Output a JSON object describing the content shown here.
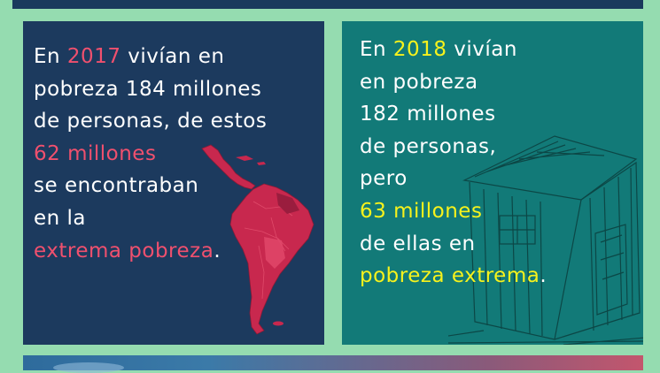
{
  "left_panel": {
    "line1": {
      "pre": "En ",
      "year": "2017",
      "post": " vivían en"
    },
    "line2": "pobreza 184 millones",
    "line3": "de personas, de estos",
    "line4": "62 millones",
    "line5": "se encontraban",
    "line6": "en la",
    "line7": {
      "highlight": "extrema pobreza",
      "post": "."
    }
  },
  "right_panel": {
    "line1": {
      "pre": "En ",
      "year": "2018",
      "post": " vivían"
    },
    "line2": "en pobreza",
    "line3": "182 millones",
    "line4": "de personas,",
    "line5": "pero",
    "line6": "63 millones",
    "line7": "de ellas en",
    "line8": {
      "highlight": "pobreza extrema",
      "post": "."
    }
  },
  "colors": {
    "background": "#95dcb0",
    "left_panel_bg": "#1c3a5e",
    "right_panel_bg": "#127a78",
    "accent_red": "#f0506e",
    "accent_yellow": "#f7f21c",
    "map_fill": "#c8284e"
  },
  "icons": {
    "left_illustration": "south-america-map-icon",
    "right_illustration": "shack-sketch-icon"
  }
}
